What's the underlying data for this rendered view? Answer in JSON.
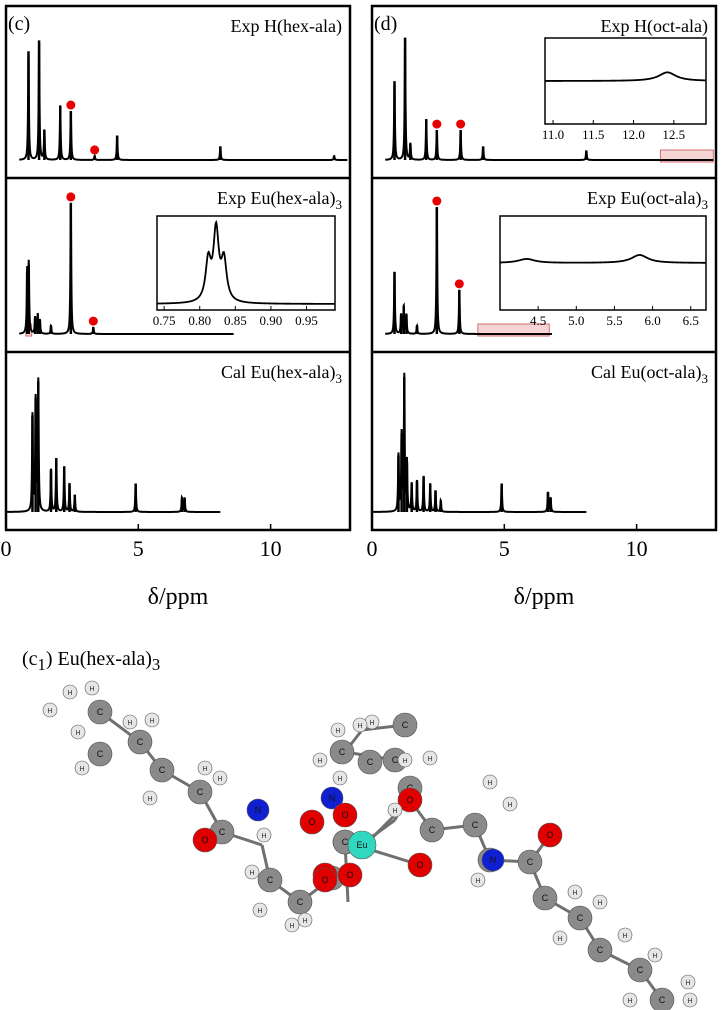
{
  "colors": {
    "line": "#000000",
    "marker": "#e60000",
    "highlight": "#e9a0a0",
    "carbon": "#8a8a8a",
    "hydrogen": "#e6e6e6",
    "oxygen": "#e00000",
    "nitrogen": "#1020d0",
    "europium": "#30d8c0"
  },
  "xlabel": "δ/ppm",
  "mol_label": {
    "prefix": "(c",
    "sub": "1",
    "mid": ") Eu(hex-ala)",
    "sub2": "3"
  },
  "atom_letters": {
    "c": "C",
    "h": "H",
    "o": "O",
    "n": "N",
    "eu": "Eu"
  },
  "chart_data": [
    {
      "panel": "c",
      "tag": "(c)",
      "type": "line",
      "xlim": [
        0,
        13
      ],
      "xticks": [
        0,
        5,
        10
      ],
      "xticklabels": [
        "0",
        "5",
        "10"
      ],
      "subplots": [
        {
          "label": "Exp H(hex-ala)",
          "label_sub": "",
          "spectrum_range": [
            0.5,
            12.9
          ],
          "peaks": [
            [
              0.85,
              0.8
            ],
            [
              1.25,
              0.88
            ],
            [
              1.45,
              0.22
            ],
            [
              2.05,
              0.4
            ],
            [
              2.45,
              0.36
            ],
            [
              3.35,
              0.03
            ],
            [
              4.2,
              0.18
            ],
            [
              8.1,
              0.1
            ],
            [
              12.4,
              0.03
            ]
          ],
          "markers": [
            2.45,
            3.35
          ],
          "insets": []
        },
        {
          "label": "Exp Eu(hex-ala)",
          "label_sub": "3",
          "spectrum_range": [
            0.5,
            8.6
          ],
          "peaks": [
            [
              0.8,
              0.45
            ],
            [
              0.86,
              0.5
            ],
            [
              1.1,
              0.12
            ],
            [
              1.2,
              0.14
            ],
            [
              1.28,
              0.1
            ],
            [
              1.7,
              0.06
            ],
            [
              2.45,
              0.95
            ],
            [
              3.3,
              0.05
            ]
          ],
          "markers": [
            2.45,
            3.3
          ],
          "highlight": [
            0.75,
            0.97
          ],
          "insets": [
            {
              "xlim": [
                0.74,
                0.99
              ],
              "xticks": [
                0.75,
                0.8,
                0.85,
                0.9,
                0.95
              ],
              "xticklabels": [
                "0.75",
                "0.80",
                "0.85",
                "0.90",
                "0.95"
              ],
              "peaks": [
                [
                  0.812,
                  0.5
                ],
                [
                  0.823,
                  0.88
                ],
                [
                  0.834,
                  0.5
                ]
              ],
              "width": 0.0045,
              "baseline": 0.0
            }
          ]
        },
        {
          "label": "Cal Eu(hex-ala)",
          "label_sub": "3",
          "spectrum_range": [
            0.0,
            8.1
          ],
          "peaks": [
            [
              1.0,
              0.68
            ],
            [
              1.12,
              0.8
            ],
            [
              1.22,
              0.92
            ],
            [
              1.7,
              0.3
            ],
            [
              1.9,
              0.38
            ],
            [
              2.2,
              0.32
            ],
            [
              2.4,
              0.2
            ],
            [
              2.6,
              0.12
            ],
            [
              4.9,
              0.2
            ],
            [
              6.65,
              0.1
            ],
            [
              6.75,
              0.1
            ]
          ],
          "markers": [],
          "insets": []
        }
      ]
    },
    {
      "panel": "d",
      "tag": "(d)",
      "type": "line",
      "xlim": [
        0,
        13
      ],
      "xticks": [
        0,
        5,
        10
      ],
      "xticklabels": [
        "0",
        "5",
        "10"
      ],
      "subplots": [
        {
          "label": "Exp H(oct-ala)",
          "label_sub": "",
          "spectrum_range": [
            0.5,
            12.9
          ],
          "peaks": [
            [
              0.85,
              0.58
            ],
            [
              1.25,
              0.9
            ],
            [
              1.45,
              0.12
            ],
            [
              2.05,
              0.3
            ],
            [
              2.45,
              0.22
            ],
            [
              3.35,
              0.22
            ],
            [
              4.2,
              0.1
            ],
            [
              8.1,
              0.07
            ]
          ],
          "markers": [
            2.45,
            3.35
          ],
          "highlight": [
            10.9,
            12.9
          ],
          "insets": [
            {
              "xlim": [
                10.9,
                12.9
              ],
              "xticks": [
                11.0,
                11.5,
                12.0,
                12.5
              ],
              "xticklabels": [
                "11.0",
                "11.5",
                "12.0",
                "12.5"
              ],
              "peaks": [
                [
                  12.42,
                  0.12
                ]
              ],
              "width": 0.13,
              "baseline": 0.5
            }
          ]
        },
        {
          "label": "Exp Eu(oct-ala)",
          "label_sub": "3",
          "spectrum_range": [
            0.5,
            6.8
          ],
          "peaks": [
            [
              0.85,
              0.45
            ],
            [
              1.1,
              0.14
            ],
            [
              1.2,
              0.2
            ],
            [
              1.3,
              0.14
            ],
            [
              1.7,
              0.06
            ],
            [
              2.45,
              0.92
            ],
            [
              3.3,
              0.32
            ]
          ],
          "markers": [
            2.45,
            3.3
          ],
          "highlight": [
            4.0,
            6.7
          ],
          "insets": [
            {
              "xlim": [
                4.0,
                6.7
              ],
              "xticks": [
                4.5,
                5.0,
                5.5,
                6.0,
                6.5
              ],
              "xticklabels": [
                "4.5",
                "5.0",
                "5.5",
                "6.0",
                "6.5"
              ],
              "peaks": [
                [
                  4.35,
                  0.05
                ],
                [
                  5.83,
                  0.1
                ]
              ],
              "width": 0.13,
              "baseline": 0.5
            }
          ]
        },
        {
          "label": "Cal Eu(oct-ala)",
          "label_sub": "3",
          "spectrum_range": [
            0.0,
            8.1
          ],
          "peaks": [
            [
              1.0,
              0.4
            ],
            [
              1.12,
              0.55
            ],
            [
              1.22,
              0.95
            ],
            [
              1.32,
              0.35
            ],
            [
              1.5,
              0.2
            ],
            [
              1.7,
              0.22
            ],
            [
              1.95,
              0.25
            ],
            [
              2.2,
              0.2
            ],
            [
              2.4,
              0.15
            ],
            [
              2.6,
              0.08
            ],
            [
              4.9,
              0.2
            ],
            [
              6.65,
              0.14
            ],
            [
              6.75,
              0.1
            ]
          ],
          "markers": [],
          "insets": []
        }
      ]
    }
  ]
}
